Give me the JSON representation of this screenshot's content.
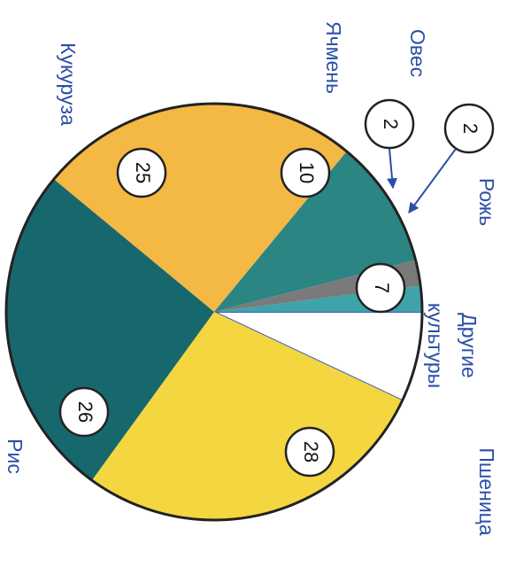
{
  "chart_data": {
    "type": "pie",
    "categories": [
      "Другие культуры",
      "Пшеница",
      "Рис",
      "Кукуруза",
      "Ячмень",
      "Овес",
      "Рожь"
    ],
    "values": [
      7,
      28,
      26,
      25,
      10,
      2,
      2
    ],
    "colors": [
      "#ffffff",
      "#f3d640",
      "#17686c",
      "#f4b844",
      "#2a8583",
      "#7a7a7a",
      "#3fa3aa"
    ]
  }
}
